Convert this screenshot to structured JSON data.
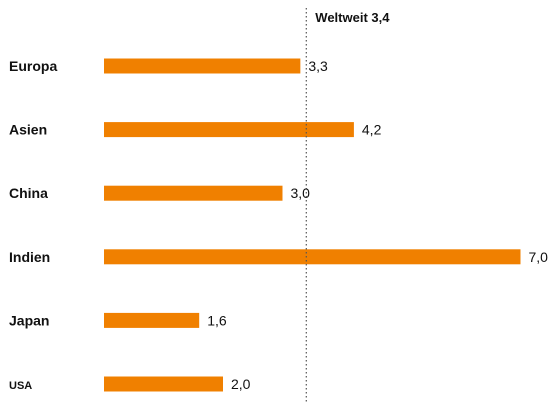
{
  "chart_data": {
    "type": "bar",
    "orientation": "horizontal",
    "categories": [
      "Europa",
      "Asien",
      "China",
      "Indien",
      "Japan",
      "USA"
    ],
    "values": [
      3.3,
      4.2,
      3.0,
      7.0,
      1.6,
      2.0
    ],
    "value_labels": [
      "3,3",
      "4,2",
      "3,0",
      "7,0",
      "1,6",
      "2,0"
    ],
    "reference_line": {
      "label": "Weltweit 3,4",
      "value": 3.4
    },
    "xlim": [
      0,
      7.0
    ],
    "grid": false,
    "legend": "none",
    "bar_color": "#f08000"
  }
}
